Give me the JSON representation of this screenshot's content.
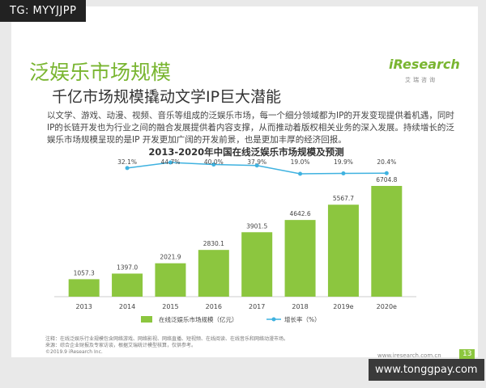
{
  "watermark_top": "TG: MYYJJPP",
  "logo": {
    "brand": "iResearch",
    "sub": "艾瑞咨询"
  },
  "header": {
    "title": "泛娱乐市场规模",
    "subtitle": "千亿市场规模撬动文学IP巨大潜能"
  },
  "body": "以文学、游戏、动漫、视频、音乐等组成的泛娱乐市场，每一个细分领域都为IP的开发变现提供着机遇，同时IP的长链开发也为行业之间的融合发展提供着内容支撑，从而推动着版权相关业务的深入发展。持续增长的泛娱乐市场规模呈现的是IP 开发更加广阔的开发前景，也是更加丰厚的经济回报。",
  "chart_data": {
    "type": "bar",
    "title": "2013-2020年中国在线泛娱乐市场规模及预测",
    "categories": [
      "2013",
      "2014",
      "2015",
      "2016",
      "2017",
      "2018",
      "2019e",
      "2020e"
    ],
    "series": [
      {
        "name": "在线泛娱乐市场规模（亿元）",
        "color": "#8cc63f",
        "values": [
          1057.3,
          1397.0,
          2021.9,
          2830.1,
          3901.5,
          4642.6,
          5567.7,
          6704.8
        ],
        "value_labels": [
          "1057.3",
          "1397.0",
          "2021.9",
          "2830.1",
          "3901.5",
          "4642.6",
          "5567.7",
          "6704.8"
        ]
      },
      {
        "name": "增长率（%）",
        "type": "line",
        "color": "#3fb2e0",
        "values": [
          null,
          32.1,
          44.7,
          40.0,
          37.9,
          19.0,
          19.9,
          20.4
        ],
        "value_labels": [
          null,
          "32.1%",
          "44.7%",
          "40.0%",
          "37.9%",
          "19.0%",
          "19.9%",
          "20.4%"
        ]
      }
    ]
  },
  "footer": {
    "notes": [
      "注释：在线泛娱乐行业规模包含网络游戏、网络影视、网络直播、短视频、在线阅读、在线音乐和网络动漫市场。",
      "来源：综合企业财报及专家访谈，根据艾瑞统计模型核算，仅供参考。",
      "©2019.9 iResearch Inc."
    ],
    "url": "www.iresearch.com.cn",
    "page": "13"
  },
  "watermark_bottom": "www.tonggpay.com"
}
